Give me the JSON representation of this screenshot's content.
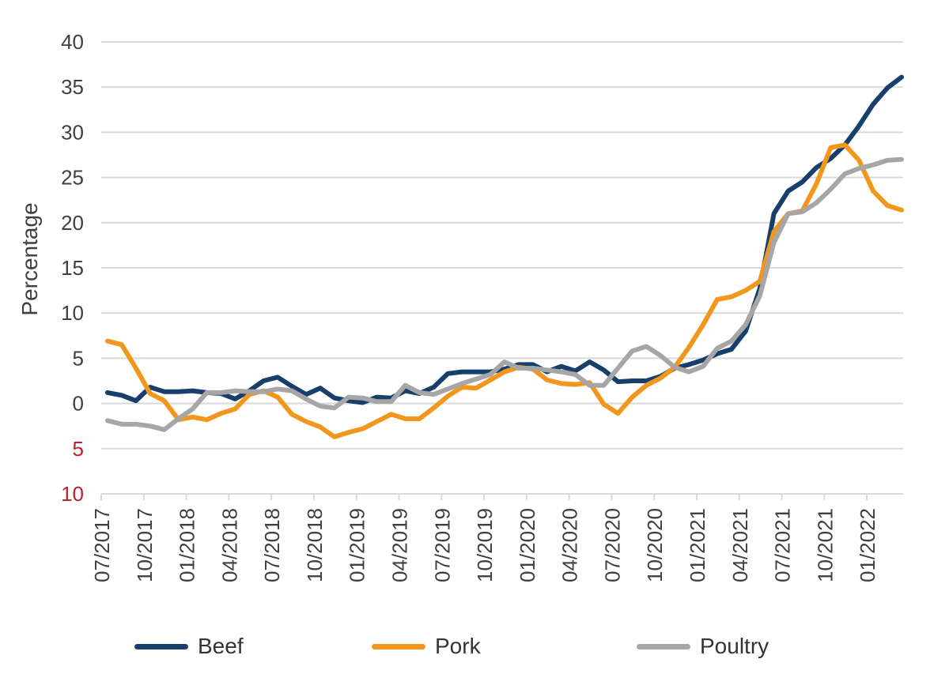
{
  "chart_data": {
    "type": "line",
    "title": "",
    "xlabel": "",
    "ylabel": "Percentage",
    "ylim": [
      -10,
      40
    ],
    "y_ticks": [
      {
        "value": 40,
        "label": "40"
      },
      {
        "value": 35,
        "label": "35"
      },
      {
        "value": 30,
        "label": "30"
      },
      {
        "value": 25,
        "label": "25"
      },
      {
        "value": 20,
        "label": "20"
      },
      {
        "value": 15,
        "label": "15"
      },
      {
        "value": 10,
        "label": "10"
      },
      {
        "value": 5,
        "label": "5"
      },
      {
        "value": 0,
        "label": "0"
      },
      {
        "value": -5,
        "label": "5"
      },
      {
        "value": -10,
        "label": "10"
      }
    ],
    "negative_label_color": "#c0202a",
    "x_ticks": [
      "07/2017",
      "10/2017",
      "01/2018",
      "04/2018",
      "07/2018",
      "10/2018",
      "01/2019",
      "04/2019",
      "07/2019",
      "10/2019",
      "01/2020",
      "04/2020",
      "07/2020",
      "10/2020",
      "01/2021",
      "04/2021",
      "07/2021",
      "10/2021",
      "01/2022"
    ],
    "x": [
      "07/2017",
      "08/2017",
      "09/2017",
      "10/2017",
      "11/2017",
      "12/2017",
      "01/2018",
      "02/2018",
      "03/2018",
      "04/2018",
      "05/2018",
      "06/2018",
      "07/2018",
      "08/2018",
      "09/2018",
      "10/2018",
      "11/2018",
      "12/2018",
      "01/2019",
      "02/2019",
      "03/2019",
      "04/2019",
      "05/2019",
      "06/2019",
      "07/2019",
      "08/2019",
      "09/2019",
      "10/2019",
      "11/2019",
      "12/2019",
      "01/2020",
      "02/2020",
      "03/2020",
      "04/2020",
      "05/2020",
      "06/2020",
      "07/2020",
      "08/2020",
      "09/2020",
      "10/2020",
      "11/2020",
      "12/2020",
      "01/2021",
      "02/2021",
      "03/2021",
      "04/2021",
      "05/2021",
      "06/2021",
      "07/2021",
      "08/2021",
      "09/2021",
      "10/2021",
      "11/2021",
      "12/2021",
      "01/2022",
      "02/2022",
      "03/2022"
    ],
    "grid": true,
    "legend_position": "bottom",
    "series": [
      {
        "name": "Beef",
        "color": "#16406b",
        "values": [
          1.2,
          0.9,
          0.3,
          1.8,
          1.3,
          1.3,
          1.4,
          1.2,
          1.1,
          0.5,
          1.4,
          2.5,
          2.9,
          1.9,
          1.0,
          1.7,
          0.6,
          0.3,
          0.1,
          0.7,
          0.6,
          1.4,
          1.1,
          1.8,
          3.3,
          3.5,
          3.5,
          3.5,
          3.8,
          4.3,
          4.3,
          3.5,
          4.1,
          3.6,
          4.6,
          3.7,
          2.4,
          2.5,
          2.5,
          3.0,
          3.9,
          4.3,
          4.8,
          5.5,
          6.0,
          8.0,
          12.7,
          21.0,
          23.5,
          24.5,
          26.1,
          27.1,
          28.6,
          30.7,
          33.1,
          34.9,
          36.1
        ]
      },
      {
        "name": "Pork",
        "color": "#f2971d",
        "values": [
          6.9,
          6.5,
          3.9,
          1.1,
          0.3,
          -1.8,
          -1.5,
          -1.8,
          -1.1,
          -0.6,
          1.0,
          1.4,
          0.7,
          -1.2,
          -2.0,
          -2.6,
          -3.7,
          -3.2,
          -2.8,
          -2.0,
          -1.2,
          -1.7,
          -1.7,
          -0.5,
          0.8,
          1.8,
          1.7,
          2.6,
          3.5,
          4.0,
          3.8,
          2.6,
          2.2,
          2.1,
          2.3,
          -0.1,
          -1.1,
          0.7,
          2.0,
          2.8,
          4.0,
          6.2,
          8.7,
          11.5,
          11.8,
          12.5,
          13.5,
          19.0,
          21.0,
          21.3,
          24.3,
          28.3,
          28.6,
          26.9,
          23.5,
          21.9,
          21.4
        ]
      },
      {
        "name": "Poultry",
        "color": "#a6a6a6",
        "values": [
          -1.9,
          -2.3,
          -2.3,
          -2.5,
          -2.9,
          -1.7,
          -0.6,
          1.2,
          1.2,
          1.4,
          1.3,
          1.3,
          1.6,
          1.4,
          0.5,
          -0.3,
          -0.5,
          0.7,
          0.6,
          0.2,
          0.2,
          2.0,
          1.2,
          1.0,
          1.6,
          2.2,
          2.7,
          3.2,
          4.6,
          3.9,
          3.9,
          3.7,
          3.5,
          3.2,
          2.0,
          2.0,
          3.9,
          5.8,
          6.3,
          5.3,
          4.0,
          3.5,
          4.1,
          6.1,
          6.9,
          8.7,
          11.9,
          17.8,
          21.0,
          21.2,
          22.2,
          23.7,
          25.4,
          26.0,
          26.4,
          26.9,
          27.0
        ]
      }
    ]
  }
}
